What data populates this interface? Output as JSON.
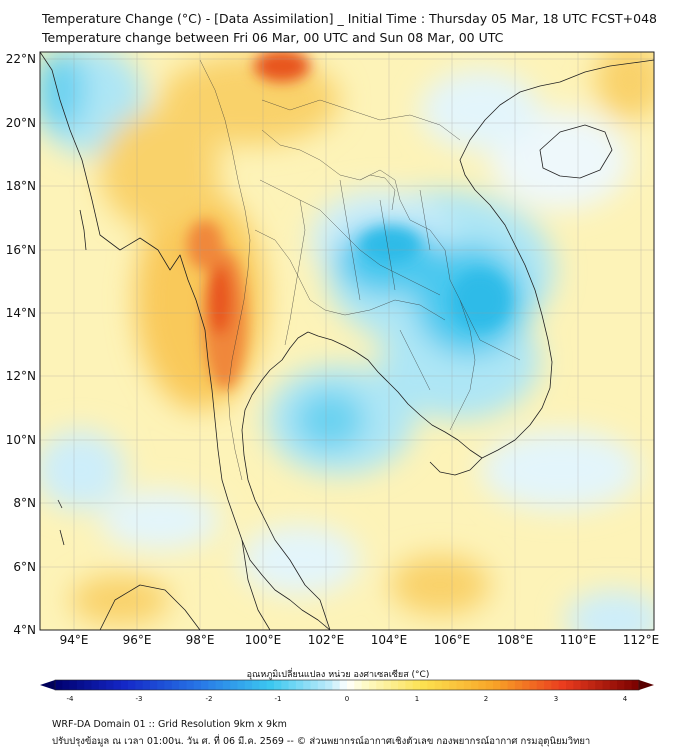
{
  "title_line1": "Temperature Change (°C) - [Data Assimilation] _ Initial Time : Thursday 05 Mar, 18 UTC FCST+048",
  "title_line2": "Temperature change between Fri 06 Mar, 00 UTC and Sun 08 Mar, 00 UTC",
  "lat_labels": [
    "22°N",
    "20°N",
    "18°N",
    "16°N",
    "14°N",
    "12°N",
    "10°N",
    "8°N",
    "6°N",
    "4°N"
  ],
  "lon_labels": [
    "94°E",
    "96°E",
    "98°E",
    "100°E",
    "102°E",
    "104°E",
    "106°E",
    "108°E",
    "110°E",
    "112°E"
  ],
  "colorbar": {
    "title": "อุณหภูมิเปลี่ยนแปลง หน่วย องศาเซลเซียส (°C)",
    "min": -4,
    "max": 4,
    "tick_labels": [
      "-4",
      "-3",
      "-2",
      "-1",
      "0",
      "1",
      "2",
      "3",
      "4"
    ]
  },
  "footer_line1": "WRF-DA Domain 01 :: Grid Resolution 9km x 9km",
  "footer_line2": "ปรับปรุงข้อมูล ณ เวลา 01:00น. วัน ศ. ที่ 06 มี.ค. 2569 -- © ส่วนพยากรณ์อากาศเชิงตัวเลข กองพยากรณ์อากาศ กรมอุตุนิยมวิทยา",
  "colors": {
    "map_bg": "#fdf3b8",
    "cold_center": "#3fc6ee",
    "cool": "#aee6f5",
    "warm": "#f9c032",
    "hot": "#e8551f",
    "outline": "#222222"
  }
}
